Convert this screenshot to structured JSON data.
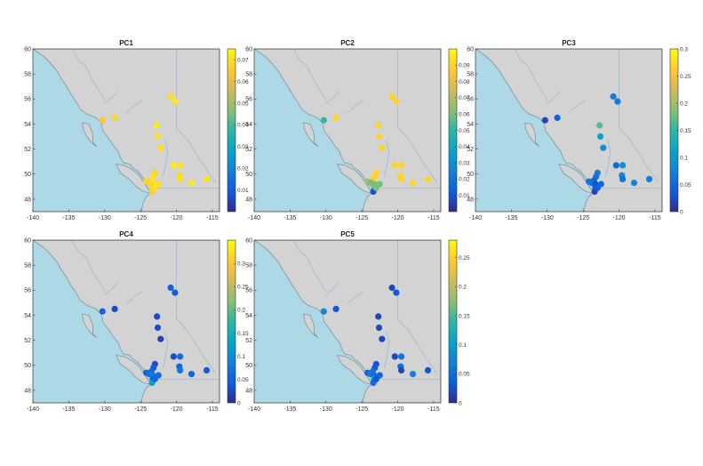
{
  "chart_data": {
    "type": "scatter",
    "panels": [
      {
        "title": "PC1",
        "colorbar_ticks": [
          "0.01",
          "0.02",
          "0.03",
          "0.04",
          "0.05",
          "0.06",
          "0.07"
        ],
        "colorbar_range": [
          0,
          0.075
        ],
        "values": [
          0.065,
          0.068,
          0.072,
          0.07,
          0.069,
          0.068,
          0.07,
          0.071,
          0.068,
          0.067,
          0.069,
          0.07,
          0.068,
          0.067,
          0.07,
          0.069,
          0.071,
          0.072,
          0.07,
          0.068,
          0.07,
          0.072,
          0.07
        ]
      },
      {
        "title": "PC2",
        "colorbar_ticks": [
          "0.01",
          "0.02",
          "0.03",
          "0.04",
          "0.05",
          "0.06",
          "0.07",
          "0.08",
          "0.09"
        ],
        "colorbar_range": [
          0,
          0.1
        ],
        "values": [
          0.05,
          0.09,
          0.09,
          0.09,
          0.09,
          0.09,
          0.09,
          0.09,
          0.07,
          0.06,
          0.06,
          0.06,
          0.06,
          0.01,
          0.06,
          0.09,
          0.09,
          0.09,
          0.09,
          0.09,
          0.09,
          0.09,
          0.09
        ]
      },
      {
        "title": "PC3",
        "colorbar_ticks": [
          "0",
          "0.05",
          "0.1",
          "0.15",
          "0.2",
          "0.25",
          "0.3"
        ],
        "colorbar_range": [
          0,
          0.3
        ],
        "values": [
          0.02,
          0.04,
          0.17,
          0.11,
          0.09,
          0.07,
          0.06,
          0.05,
          0.06,
          0.06,
          0.03,
          0.05,
          0.04,
          0.02,
          0.04,
          0.07,
          0.07,
          0.05,
          0.09,
          0.08,
          0.06,
          0.08,
          0.07
        ]
      },
      {
        "title": "PC4",
        "colorbar_ticks": [
          "0",
          "0.05",
          "0.1",
          "0.15",
          "0.2",
          "0.25",
          "0.3"
        ],
        "colorbar_range": [
          0,
          0.35
        ],
        "values": [
          0.05,
          0.03,
          0.03,
          0.03,
          0.02,
          0.03,
          0.04,
          0.06,
          0.05,
          0.07,
          0.08,
          0.06,
          0.05,
          0.13,
          0.06,
          0.05,
          0.04,
          0.03,
          0.06,
          0.05,
          0.07,
          0.05,
          0.04
        ]
      },
      {
        "title": "PC5",
        "colorbar_ticks": [
          "0",
          "0.05",
          "0.1",
          "0.15",
          "0.2",
          "0.25"
        ],
        "colorbar_range": [
          0,
          0.28
        ],
        "values": [
          0.08,
          0.03,
          0.02,
          0.02,
          0.02,
          0.03,
          0.03,
          0.05,
          0.04,
          0.06,
          0.05,
          0.04,
          0.1,
          0.05,
          0.03,
          0.02,
          0.03,
          0.02,
          0.06,
          0.05,
          0.02,
          0.07,
          0.03
        ]
      }
    ],
    "sites": [
      {
        "lon": -130.3,
        "lat": 54.3
      },
      {
        "lon": -128.6,
        "lat": 54.5
      },
      {
        "lon": -122.7,
        "lat": 53.9
      },
      {
        "lon": -122.6,
        "lat": 53.0
      },
      {
        "lon": -122.2,
        "lat": 52.1
      },
      {
        "lon": -123.0,
        "lat": 50.1
      },
      {
        "lon": -123.2,
        "lat": 49.8
      },
      {
        "lon": -123.5,
        "lat": 49.5
      },
      {
        "lon": -124.2,
        "lat": 49.4
      },
      {
        "lon": -123.8,
        "lat": 49.3
      },
      {
        "lon": -123.3,
        "lat": 49.2
      },
      {
        "lon": -122.5,
        "lat": 49.2
      },
      {
        "lon": -123.3,
        "lat": 48.9
      },
      {
        "lon": -123.4,
        "lat": 48.6
      },
      {
        "lon": -123.0,
        "lat": 48.9
      },
      {
        "lon": -120.8,
        "lat": 56.2
      },
      {
        "lon": -120.2,
        "lat": 55.8
      },
      {
        "lon": -120.4,
        "lat": 50.7
      },
      {
        "lon": -119.5,
        "lat": 50.7
      },
      {
        "lon": -119.6,
        "lat": 49.9
      },
      {
        "lon": -119.5,
        "lat": 49.6
      },
      {
        "lon": -117.9,
        "lat": 49.3
      },
      {
        "lon": -115.8,
        "lat": 49.6
      }
    ],
    "map": {
      "lon_range": [
        -140,
        -114
      ],
      "lat_range": [
        47,
        60
      ],
      "x_ticks": [
        -140,
        -135,
        -130,
        -125,
        -120,
        -115
      ],
      "y_ticks": [
        48,
        50,
        52,
        54,
        56,
        58,
        60
      ],
      "ocean_color": "#add8e6",
      "land_color": "#d3d3d3"
    },
    "colormap": "parula"
  }
}
